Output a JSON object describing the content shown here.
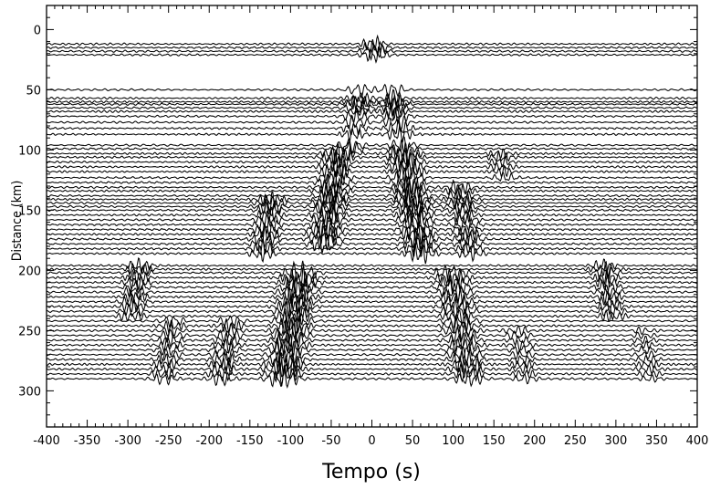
{
  "chart_data": {
    "type": "line",
    "subtype": "seismic-record-section",
    "title": "",
    "xlabel": "Tempo (s)",
    "ylabel": "Distance (km)",
    "xlim": [
      -400,
      400
    ],
    "ylim": [
      -20,
      330
    ],
    "y_inverted": true,
    "grid": false,
    "legend": "none",
    "xticks": [
      -400,
      -350,
      -300,
      -250,
      -200,
      -150,
      -100,
      -50,
      0,
      50,
      100,
      150,
      200,
      250,
      300,
      350,
      400
    ],
    "yticks": [
      0,
      50,
      100,
      150,
      200,
      250,
      300
    ],
    "xtick_labels": [
      "-400",
      "-350",
      "-300",
      "-250",
      "-200",
      "-150",
      "-100",
      "-50",
      "0",
      "50",
      "100",
      "150",
      "200",
      "250",
      "300",
      "350",
      "400"
    ],
    "ytick_labels": [
      "0",
      "50",
      "100",
      "150",
      "200",
      "250",
      "300"
    ],
    "trace_color": "#000000",
    "trace_distances_km": [
      12,
      15,
      18,
      21,
      50,
      57,
      60,
      62,
      65,
      68,
      72,
      77,
      82,
      87,
      96,
      99,
      103,
      106,
      110,
      114,
      118,
      123,
      127,
      131,
      134,
      138,
      141,
      144,
      147,
      150,
      154,
      158,
      162,
      166,
      170,
      174,
      178,
      182,
      186,
      196,
      199,
      202,
      206,
      210,
      214,
      218,
      222,
      226,
      230,
      234,
      238,
      242,
      246,
      250,
      254,
      258,
      262,
      266,
      270,
      274,
      278,
      282,
      286,
      290
    ],
    "wave_packets": [
      {
        "t_center_s": 3,
        "d_min_km": -5,
        "d_max_km": 35,
        "amplitude_km": 7
      },
      {
        "t_center_s": -20,
        "d_min_km": 48,
        "d_max_km": 100,
        "amplitude_km": 6
      },
      {
        "t_center_s": 30,
        "d_min_km": 40,
        "d_max_km": 100,
        "amplitude_km": 7
      },
      {
        "t_center_s": -50,
        "d_min_km": 100,
        "d_max_km": 180,
        "amplitude_km": 9
      },
      {
        "t_center_s": 50,
        "d_min_km": 100,
        "d_max_km": 190,
        "amplitude_km": 9
      },
      {
        "t_center_s": -130,
        "d_min_km": 140,
        "d_max_km": 195,
        "amplitude_km": 7
      },
      {
        "t_center_s": 115,
        "d_min_km": 130,
        "d_max_km": 195,
        "amplitude_km": 6
      },
      {
        "t_center_s": 160,
        "d_min_km": 100,
        "d_max_km": 125,
        "amplitude_km": 4
      },
      {
        "t_center_s": -100,
        "d_min_km": 200,
        "d_max_km": 305,
        "amplitude_km": 10
      },
      {
        "t_center_s": 110,
        "d_min_km": 200,
        "d_max_km": 300,
        "amplitude_km": 7
      },
      {
        "t_center_s": -290,
        "d_min_km": 190,
        "d_max_km": 240,
        "amplitude_km": 6
      },
      {
        "t_center_s": 290,
        "d_min_km": 190,
        "d_max_km": 240,
        "amplitude_km": 6
      },
      {
        "t_center_s": -180,
        "d_min_km": 240,
        "d_max_km": 300,
        "amplitude_km": 6
      },
      {
        "t_center_s": -250,
        "d_min_km": 240,
        "d_max_km": 290,
        "amplitude_km": 5
      },
      {
        "t_center_s": 185,
        "d_min_km": 250,
        "d_max_km": 300,
        "amplitude_km": 4
      },
      {
        "t_center_s": 340,
        "d_min_km": 250,
        "d_max_km": 300,
        "amplitude_km": 3
      }
    ],
    "background_noise_amplitude_km": 0.9
  }
}
